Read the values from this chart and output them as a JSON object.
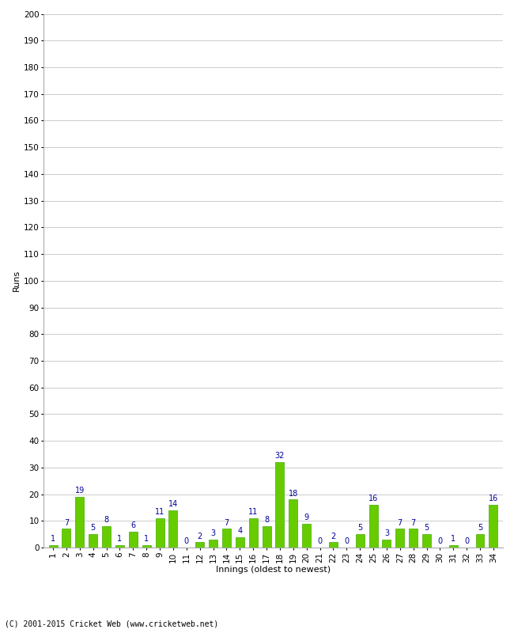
{
  "innings": [
    1,
    2,
    3,
    4,
    5,
    6,
    7,
    8,
    9,
    10,
    11,
    12,
    13,
    14,
    15,
    16,
    17,
    18,
    19,
    20,
    21,
    22,
    23,
    24,
    25,
    26,
    27,
    28,
    29,
    30,
    31,
    32,
    33,
    34
  ],
  "runs": [
    1,
    7,
    19,
    5,
    8,
    1,
    6,
    1,
    11,
    14,
    0,
    2,
    3,
    7,
    4,
    11,
    8,
    32,
    18,
    9,
    0,
    2,
    0,
    5,
    16,
    3,
    7,
    7,
    5,
    0,
    1,
    0,
    5,
    16
  ],
  "bar_color": "#66cc00",
  "bar_edge_color": "#44aa00",
  "label_color": "#000099",
  "ylabel": "Runs",
  "xlabel": "Innings (oldest to newest)",
  "ylim": [
    0,
    200
  ],
  "yticks": [
    0,
    10,
    20,
    30,
    40,
    50,
    60,
    70,
    80,
    90,
    100,
    110,
    120,
    130,
    140,
    150,
    160,
    170,
    180,
    190,
    200
  ],
  "footer": "(C) 2001-2015 Cricket Web (www.cricketweb.net)",
  "grid_color": "#cccccc",
  "label_fontsize": 7,
  "axis_tick_fontsize": 7.5,
  "axis_label_fontsize": 8,
  "footer_fontsize": 7
}
